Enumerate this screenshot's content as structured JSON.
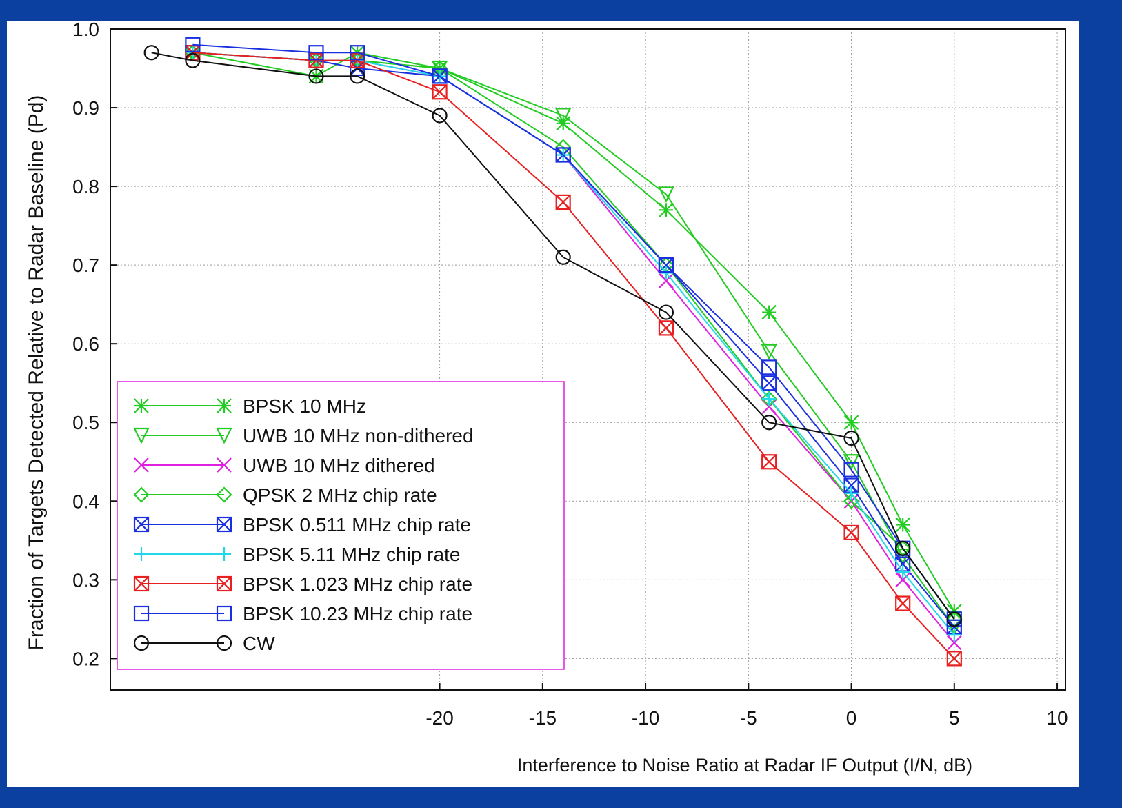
{
  "chart_data": {
    "type": "line",
    "ylabel": "Fraction of Targets Detected Relative to Radar Baseline (Pd)",
    "xlabel": "Interference to Noise Ratio at Radar IF Output (I/N, dB)",
    "x": [
      -34,
      -32,
      -26,
      -24,
      -20,
      -14,
      -9,
      -4,
      0,
      2.5,
      5
    ],
    "xlim": [
      -36,
      10.4
    ],
    "xticks": [
      -20,
      -15,
      -10,
      -5,
      0,
      5,
      10
    ],
    "ylim": [
      0.16,
      1.0
    ],
    "yticks": [
      {
        "value": 1.0,
        "label": "1.0"
      },
      0.9,
      0.8,
      0.7,
      0.6,
      0.5,
      0.4,
      0.3,
      0.2
    ],
    "grid": true,
    "legend": "lower-left",
    "series": [
      {
        "name": "BPSK 10 MHz",
        "color": "#22cc22",
        "marker": "asterisk",
        "values": [
          null,
          0.97,
          0.94,
          0.97,
          0.95,
          0.88,
          0.77,
          0.64,
          0.5,
          0.37,
          0.26
        ]
      },
      {
        "name": "UWB 10 MHz non-dithered",
        "color": "#22cc22",
        "marker": "triangle",
        "values": [
          null,
          0.97,
          0.96,
          0.96,
          0.95,
          0.89,
          0.79,
          0.59,
          0.45,
          0.33,
          0.24
        ]
      },
      {
        "name": "UWB 10 MHz dithered",
        "color": "#e020e0",
        "marker": "cross",
        "values": [
          null,
          0.97,
          0.96,
          0.96,
          0.94,
          0.84,
          0.68,
          0.52,
          0.4,
          0.3,
          0.22
        ]
      },
      {
        "name": "QPSK 2 MHz chip rate",
        "color": "#22cc22",
        "marker": "diamond",
        "values": [
          null,
          0.97,
          0.96,
          0.96,
          0.95,
          0.85,
          0.7,
          0.53,
          0.4,
          0.34,
          0.25
        ]
      },
      {
        "name": "BPSK 0.511 MHz chip rate",
        "color": "#1a2fe0",
        "marker": "crossbox",
        "values": [
          null,
          0.97,
          0.96,
          0.95,
          0.94,
          0.84,
          0.7,
          0.55,
          0.42,
          0.32,
          0.24
        ]
      },
      {
        "name": "BPSK 5.11 MHz chip rate",
        "color": "#20d8e8",
        "marker": "plus",
        "values": [
          null,
          0.97,
          0.96,
          0.96,
          0.94,
          0.84,
          0.69,
          0.53,
          0.41,
          0.31,
          0.23
        ]
      },
      {
        "name": "BPSK 1.023 MHz chip rate",
        "color": "#e82020",
        "marker": "crossbox",
        "values": [
          null,
          0.97,
          0.96,
          0.96,
          0.92,
          0.78,
          0.62,
          0.45,
          0.36,
          0.27,
          0.2
        ]
      },
      {
        "name": "BPSK 10.23 MHz chip rate",
        "color": "#1a2fe0",
        "marker": "square",
        "values": [
          null,
          0.98,
          0.97,
          0.97,
          0.94,
          0.84,
          0.7,
          0.57,
          0.44,
          0.34,
          0.25
        ]
      },
      {
        "name": "CW",
        "color": "#111111",
        "marker": "circle",
        "values": [
          0.97,
          0.96,
          0.94,
          0.94,
          0.89,
          0.71,
          0.64,
          0.5,
          0.48,
          0.34,
          0.25
        ]
      }
    ]
  }
}
